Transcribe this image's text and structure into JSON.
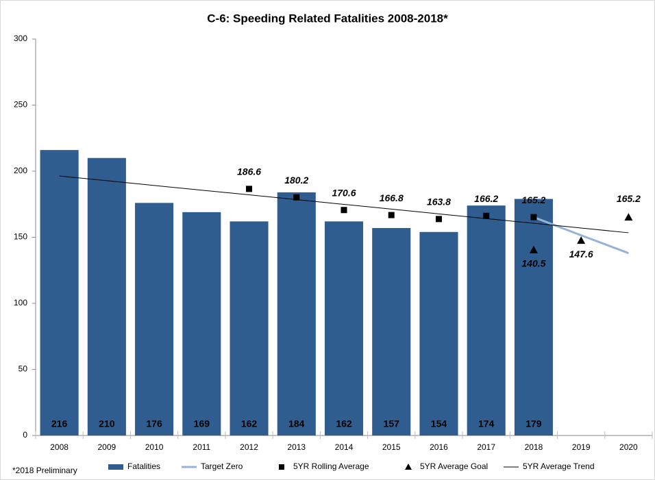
{
  "chart_data": {
    "type": "bar",
    "title": "C-6: Speeding Related Fatalities 2008-2018*",
    "footnote": "*2018 Preliminary",
    "categories": [
      "2008",
      "2009",
      "2010",
      "2011",
      "2012",
      "2013",
      "2014",
      "2015",
      "2016",
      "2017",
      "2018",
      "2019",
      "2020"
    ],
    "ylim": [
      0,
      300
    ],
    "yticks": [
      0,
      50,
      100,
      150,
      200,
      250,
      300
    ],
    "series": [
      {
        "name": "Fatalities",
        "type": "bar",
        "color": "#2f5d8f",
        "values": [
          216,
          210,
          176,
          169,
          162,
          184,
          162,
          157,
          154,
          174,
          179,
          null,
          null
        ]
      },
      {
        "name": "Target Zero",
        "type": "line",
        "color": "#95b3d7",
        "values": [
          null,
          null,
          null,
          null,
          null,
          null,
          null,
          null,
          null,
          null,
          165.2,
          151.5,
          138
        ]
      },
      {
        "name": "5YR Rolling Average",
        "type": "scatter",
        "marker": "square",
        "color": "#000000",
        "values": [
          null,
          null,
          null,
          null,
          186.6,
          180.2,
          170.6,
          166.8,
          163.8,
          166.2,
          165.2,
          null,
          null
        ]
      },
      {
        "name": "5YR Average Goal",
        "type": "scatter",
        "marker": "triangle",
        "color": "#000000",
        "values": [
          null,
          null,
          null,
          null,
          null,
          null,
          null,
          null,
          null,
          null,
          140.5,
          147.6,
          165.2
        ]
      },
      {
        "name": "5YR Average Trend",
        "type": "trend",
        "color": "#000000",
        "values": [
          196.4,
          192.8,
          189.2,
          185.6,
          182.1,
          178.5,
          174.9,
          171.3,
          167.7,
          164.1,
          160.6,
          157.0,
          153.4
        ]
      }
    ]
  }
}
